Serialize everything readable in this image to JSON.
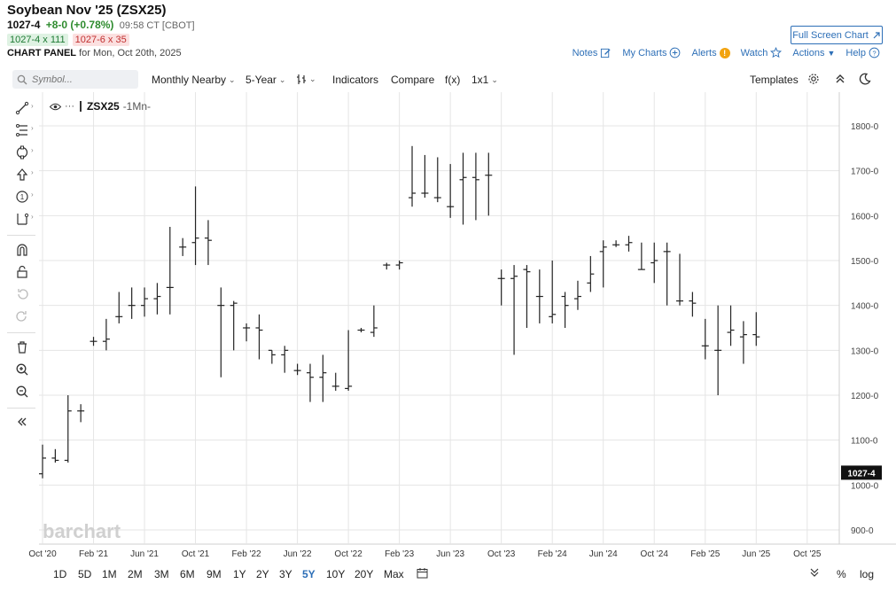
{
  "header": {
    "title": "Soybean Nov '25 (ZSX25)",
    "last": "1027-4",
    "change": "+8-0 (+0.78%)",
    "time": "09:58 CT [CBOT]",
    "bid": "1027-4 x 111",
    "ask": "1027-6 x 35",
    "panel_label": "CHART PANEL",
    "panel_date": "for Mon, Oct 20th, 2025",
    "fullscreen": "Full Screen Chart"
  },
  "links": {
    "notes": "Notes",
    "my_charts": "My Charts",
    "alerts": "Alerts",
    "alerts_badge": "!",
    "watch": "Watch",
    "actions": "Actions",
    "help": "Help"
  },
  "toolbar": {
    "search_placeholder": "Symbol...",
    "period": "Monthly Nearby",
    "range": "5-Year",
    "indicators": "Indicators",
    "compare": "Compare",
    "fx": "f(x)",
    "layout": "1x1",
    "templates": "Templates"
  },
  "legend": {
    "symbol": "ZSX25",
    "period": "-1Mn-"
  },
  "watermark": "barchart",
  "last_price_tag": "1027-4",
  "bottom": {
    "ranges": [
      "1D",
      "5D",
      "1M",
      "2M",
      "3M",
      "6M",
      "9M",
      "1Y",
      "2Y",
      "3Y",
      "5Y",
      "10Y",
      "20Y",
      "Max"
    ],
    "active_range": "5Y",
    "percent": "%",
    "log": "log"
  },
  "colors": {
    "accent": "#2d6fb7",
    "up": "#2e8b2e",
    "down": "#c22f2f",
    "grid": "#e5e5e5",
    "bar": "#222222"
  },
  "chart_data": {
    "type": "ohlc",
    "period": "monthly",
    "y_tick_labels": [
      "1800-0",
      "1700-0",
      "1600-0",
      "1500-0",
      "1400-0",
      "1300-0",
      "1200-0",
      "1100-0",
      "1000-0",
      "900-0"
    ],
    "y_ticks": [
      1800,
      1700,
      1600,
      1500,
      1400,
      1300,
      1200,
      1100,
      1000,
      900
    ],
    "ylim": [
      870,
      1830
    ],
    "x_tick_labels": [
      "Oct '20",
      "Feb '21",
      "Jun '21",
      "Oct '21",
      "Feb '22",
      "Jun '22",
      "Oct '22",
      "Feb '23",
      "Jun '23",
      "Oct '23",
      "Feb '24",
      "Jun '24",
      "Oct '24",
      "Feb '25",
      "Jun '25",
      "Oct '25"
    ],
    "last_value": 1027.5,
    "bars": [
      {
        "m": "2020-10",
        "o": 1025,
        "h": 1090,
        "l": 1015,
        "c": 1060
      },
      {
        "m": "2020-11",
        "o": 1060,
        "h": 1080,
        "l": 1050,
        "c": 1055
      },
      {
        "m": "2020-12",
        "o": 1055,
        "h": 1200,
        "l": 1050,
        "c": 1165
      },
      {
        "m": "2021-01",
        "o": 1165,
        "h": 1180,
        "l": 1140,
        "c": 1165
      },
      {
        "m": "2021-02",
        "o": 1320,
        "h": 1330,
        "l": 1310,
        "c": 1320
      },
      {
        "m": "2021-03",
        "o": 1320,
        "h": 1370,
        "l": 1300,
        "c": 1325
      },
      {
        "m": "2021-04",
        "o": 1375,
        "h": 1430,
        "l": 1360,
        "c": 1375
      },
      {
        "m": "2021-05",
        "o": 1400,
        "h": 1440,
        "l": 1370,
        "c": 1400
      },
      {
        "m": "2021-06",
        "o": 1400,
        "h": 1440,
        "l": 1375,
        "c": 1415
      },
      {
        "m": "2021-07",
        "o": 1415,
        "h": 1450,
        "l": 1380,
        "c": 1420
      },
      {
        "m": "2021-08",
        "o": 1440,
        "h": 1575,
        "l": 1380,
        "c": 1440
      },
      {
        "m": "2021-09",
        "o": 1530,
        "h": 1550,
        "l": 1510,
        "c": 1530
      },
      {
        "m": "2021-10",
        "o": 1540,
        "h": 1665,
        "l": 1490,
        "c": 1550
      },
      {
        "m": "2021-11",
        "o": 1550,
        "h": 1590,
        "l": 1490,
        "c": 1545
      },
      {
        "m": "2021-12",
        "o": 1400,
        "h": 1440,
        "l": 1240,
        "c": 1400
      },
      {
        "m": "2022-01",
        "o": 1400,
        "h": 1410,
        "l": 1300,
        "c": 1405
      },
      {
        "m": "2022-02",
        "o": 1350,
        "h": 1360,
        "l": 1320,
        "c": 1350
      },
      {
        "m": "2022-03",
        "o": 1350,
        "h": 1380,
        "l": 1280,
        "c": 1345
      },
      {
        "m": "2022-04",
        "o": 1300,
        "h": 1300,
        "l": 1270,
        "c": 1290
      },
      {
        "m": "2022-05",
        "o": 1290,
        "h": 1310,
        "l": 1250,
        "c": 1300
      },
      {
        "m": "2022-06",
        "o": 1255,
        "h": 1270,
        "l": 1245,
        "c": 1255
      },
      {
        "m": "2022-07",
        "o": 1250,
        "h": 1270,
        "l": 1185,
        "c": 1240
      },
      {
        "m": "2022-08",
        "o": 1240,
        "h": 1290,
        "l": 1185,
        "c": 1250
      },
      {
        "m": "2022-09",
        "o": 1220,
        "h": 1250,
        "l": 1210,
        "c": 1220
      },
      {
        "m": "2022-10",
        "o": 1215,
        "h": 1345,
        "l": 1210,
        "c": 1220
      },
      {
        "m": "2022-11",
        "o": 1345,
        "h": 1350,
        "l": 1340,
        "c": 1345
      },
      {
        "m": "2022-12",
        "o": 1340,
        "h": 1400,
        "l": 1330,
        "c": 1350
      },
      {
        "m": "2023-01",
        "o": 1490,
        "h": 1495,
        "l": 1480,
        "c": 1490
      },
      {
        "m": "2023-02",
        "o": 1490,
        "h": 1500,
        "l": 1480,
        "c": 1495
      },
      {
        "m": "2023-03",
        "o": 1640,
        "h": 1755,
        "l": 1620,
        "c": 1650
      },
      {
        "m": "2023-04",
        "o": 1650,
        "h": 1735,
        "l": 1640,
        "c": 1650
      },
      {
        "m": "2023-05",
        "o": 1640,
        "h": 1730,
        "l": 1630,
        "c": 1640
      },
      {
        "m": "2023-06",
        "o": 1620,
        "h": 1715,
        "l": 1595,
        "c": 1620
      },
      {
        "m": "2023-07",
        "o": 1680,
        "h": 1740,
        "l": 1580,
        "c": 1685
      },
      {
        "m": "2023-08",
        "o": 1685,
        "h": 1740,
        "l": 1590,
        "c": 1680
      },
      {
        "m": "2023-09",
        "o": 1690,
        "h": 1740,
        "l": 1600,
        "c": 1690
      },
      {
        "m": "2023-10",
        "o": 1460,
        "h": 1480,
        "l": 1400,
        "c": 1460
      },
      {
        "m": "2023-11",
        "o": 1460,
        "h": 1490,
        "l": 1290,
        "c": 1465
      },
      {
        "m": "2023-12",
        "o": 1480,
        "h": 1490,
        "l": 1350,
        "c": 1475
      },
      {
        "m": "2024-01",
        "o": 1420,
        "h": 1480,
        "l": 1360,
        "c": 1420
      },
      {
        "m": "2024-02",
        "o": 1375,
        "h": 1500,
        "l": 1360,
        "c": 1380
      },
      {
        "m": "2024-03",
        "o": 1420,
        "h": 1430,
        "l": 1350,
        "c": 1400
      },
      {
        "m": "2024-04",
        "o": 1415,
        "h": 1455,
        "l": 1390,
        "c": 1420
      },
      {
        "m": "2024-05",
        "o": 1450,
        "h": 1510,
        "l": 1430,
        "c": 1470
      },
      {
        "m": "2024-06",
        "o": 1520,
        "h": 1545,
        "l": 1440,
        "c": 1530
      },
      {
        "m": "2024-07",
        "o": 1535,
        "h": 1545,
        "l": 1530,
        "c": 1535
      },
      {
        "m": "2024-08",
        "o": 1535,
        "h": 1555,
        "l": 1520,
        "c": 1540
      },
      {
        "m": "2024-09",
        "o": 1480,
        "h": 1540,
        "l": 1480,
        "c": 1480
      },
      {
        "m": "2024-10",
        "o": 1495,
        "h": 1540,
        "l": 1450,
        "c": 1500
      },
      {
        "m": "2024-11",
        "o": 1520,
        "h": 1540,
        "l": 1400,
        "c": 1520
      },
      {
        "m": "2024-12",
        "o": 1410,
        "h": 1515,
        "l": 1400,
        "c": 1410
      },
      {
        "m": "2025-01",
        "o": 1410,
        "h": 1430,
        "l": 1375,
        "c": 1405
      },
      {
        "m": "2025-02",
        "o": 1310,
        "h": 1370,
        "l": 1280,
        "c": 1310
      },
      {
        "m": "2025-03",
        "o": 1300,
        "h": 1400,
        "l": 1200,
        "c": 1300
      },
      {
        "m": "2025-04",
        "o": 1340,
        "h": 1400,
        "l": 1310,
        "c": 1345
      },
      {
        "m": "2025-05",
        "o": 1330,
        "h": 1365,
        "l": 1270,
        "c": 1335
      },
      {
        "m": "2025-06",
        "o": 1335,
        "h": 1385,
        "l": 1310,
        "c": 1330
      }
    ]
  }
}
